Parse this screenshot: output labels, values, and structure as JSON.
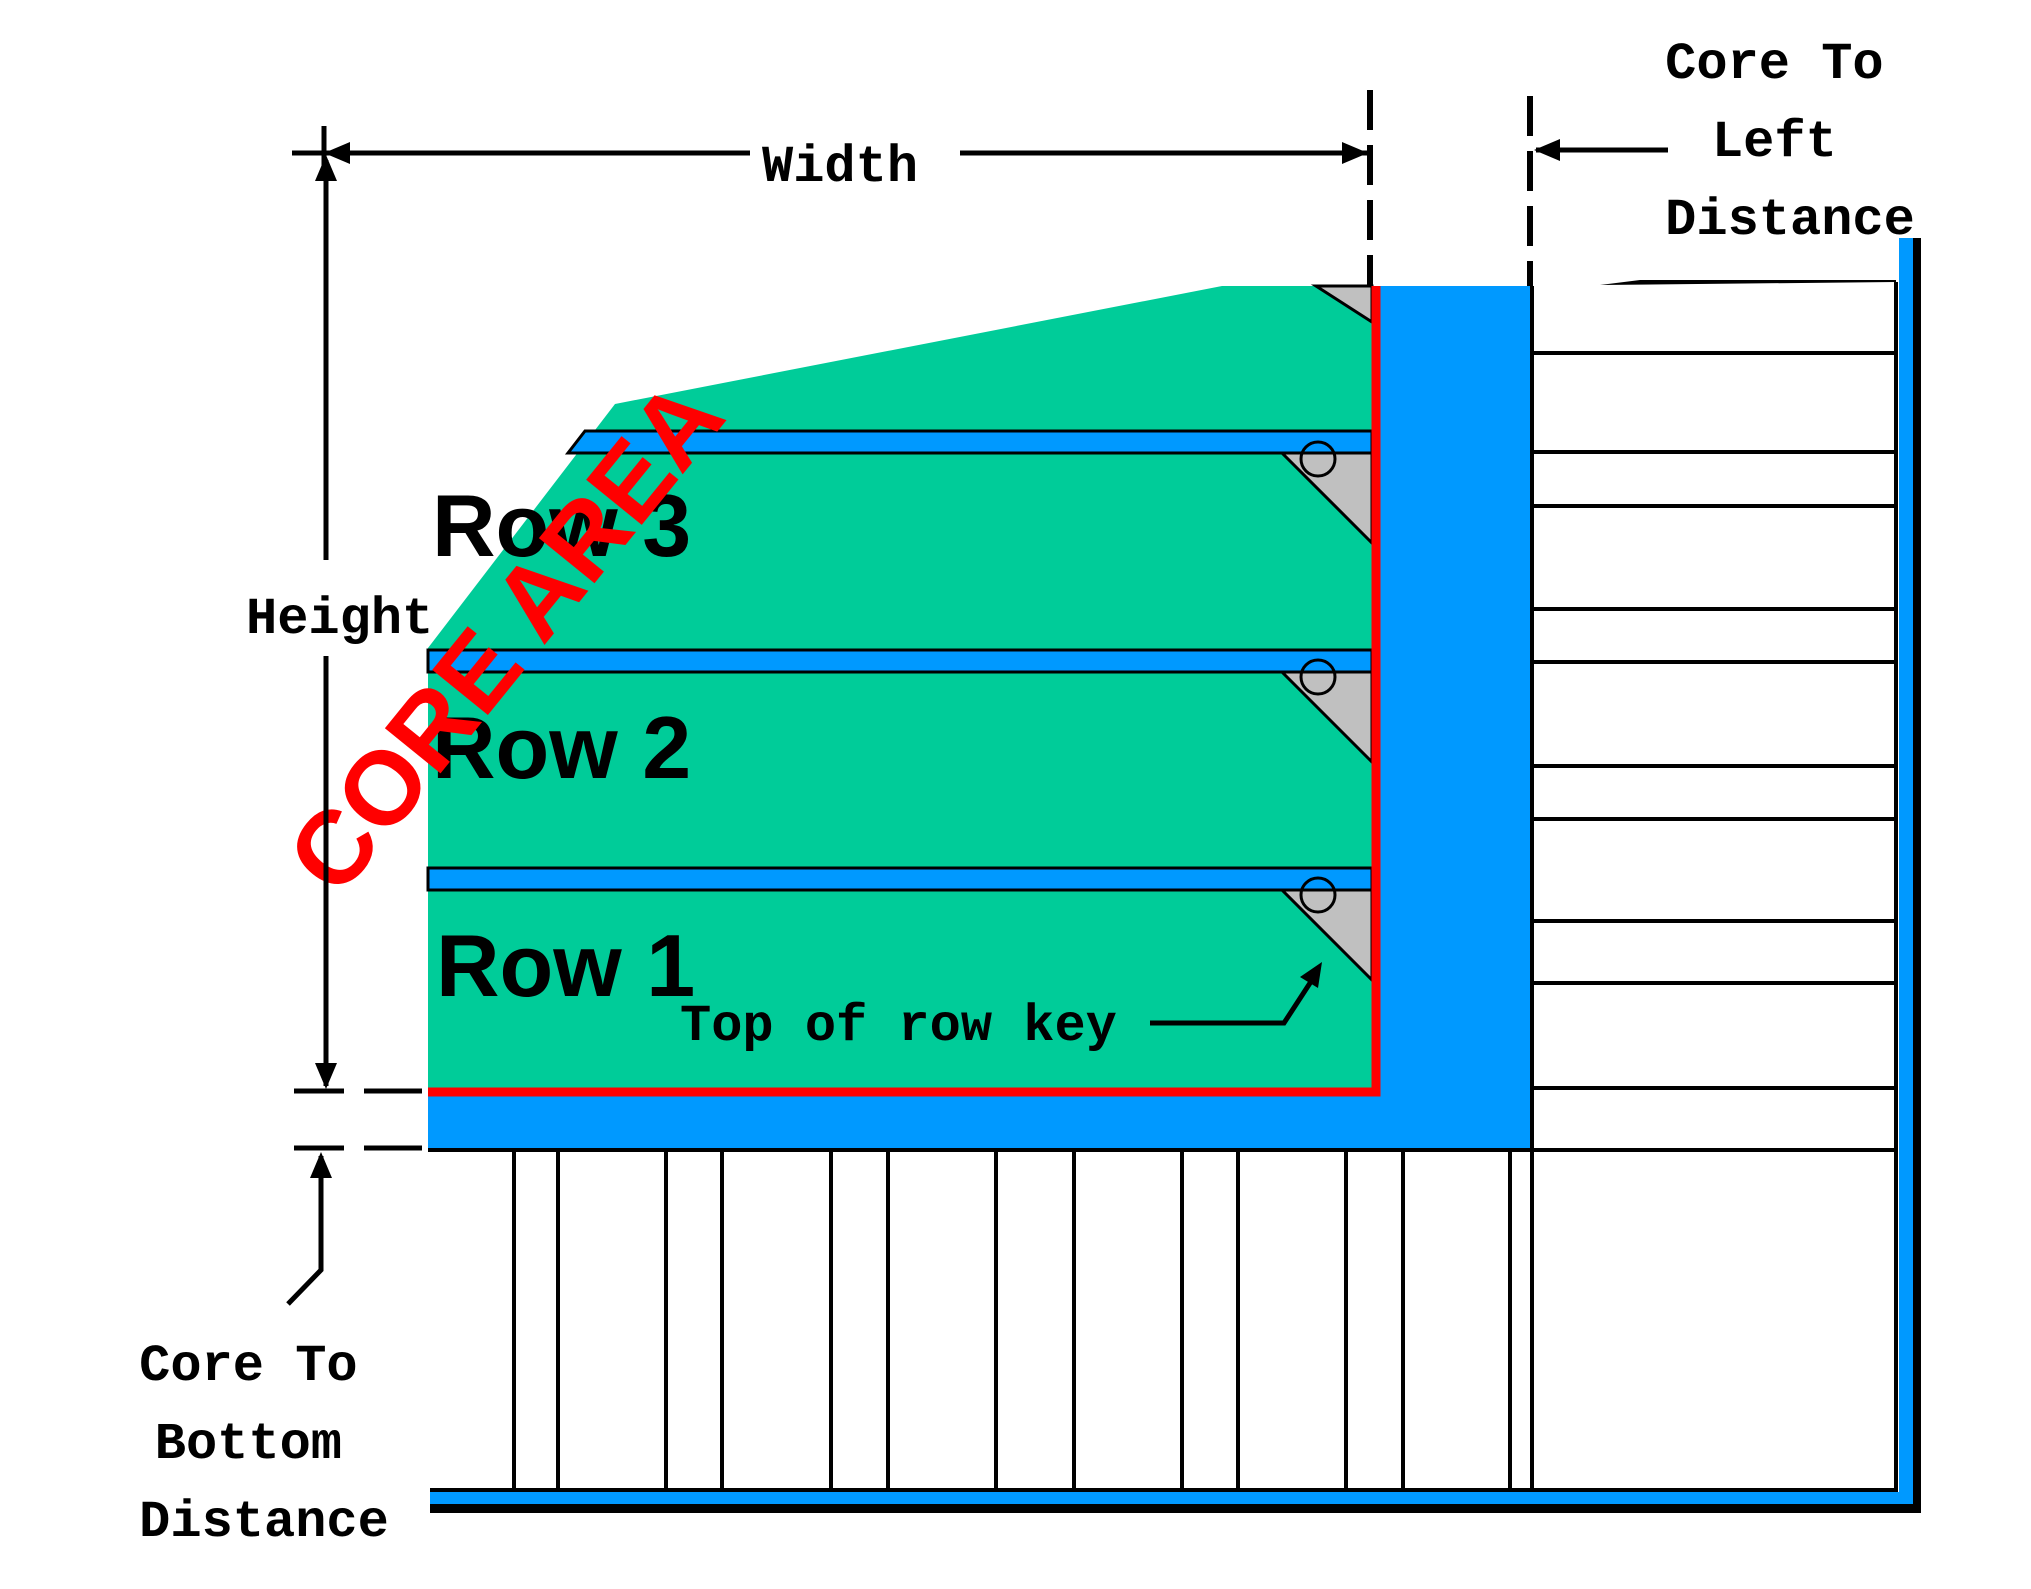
{
  "labels": {
    "width": "Width",
    "height": "Height",
    "core_to_left": [
      "Core To",
      "Left",
      "Distance"
    ],
    "core_to_bottom": [
      "Core To",
      "Bottom",
      "Distance"
    ],
    "row1": "Row 1",
    "row2": "Row 2",
    "row3": "Row 3",
    "core_area": "CORE AREA",
    "top_of_row_key": "Top of row key"
  },
  "colors": {
    "row_fill": "#00CC99",
    "channel": "#0099FF",
    "core_boundary": "#FF0000",
    "core_area_text": "#FF0000",
    "key_triangle": "#C0C0C0",
    "outline": "#000000"
  }
}
